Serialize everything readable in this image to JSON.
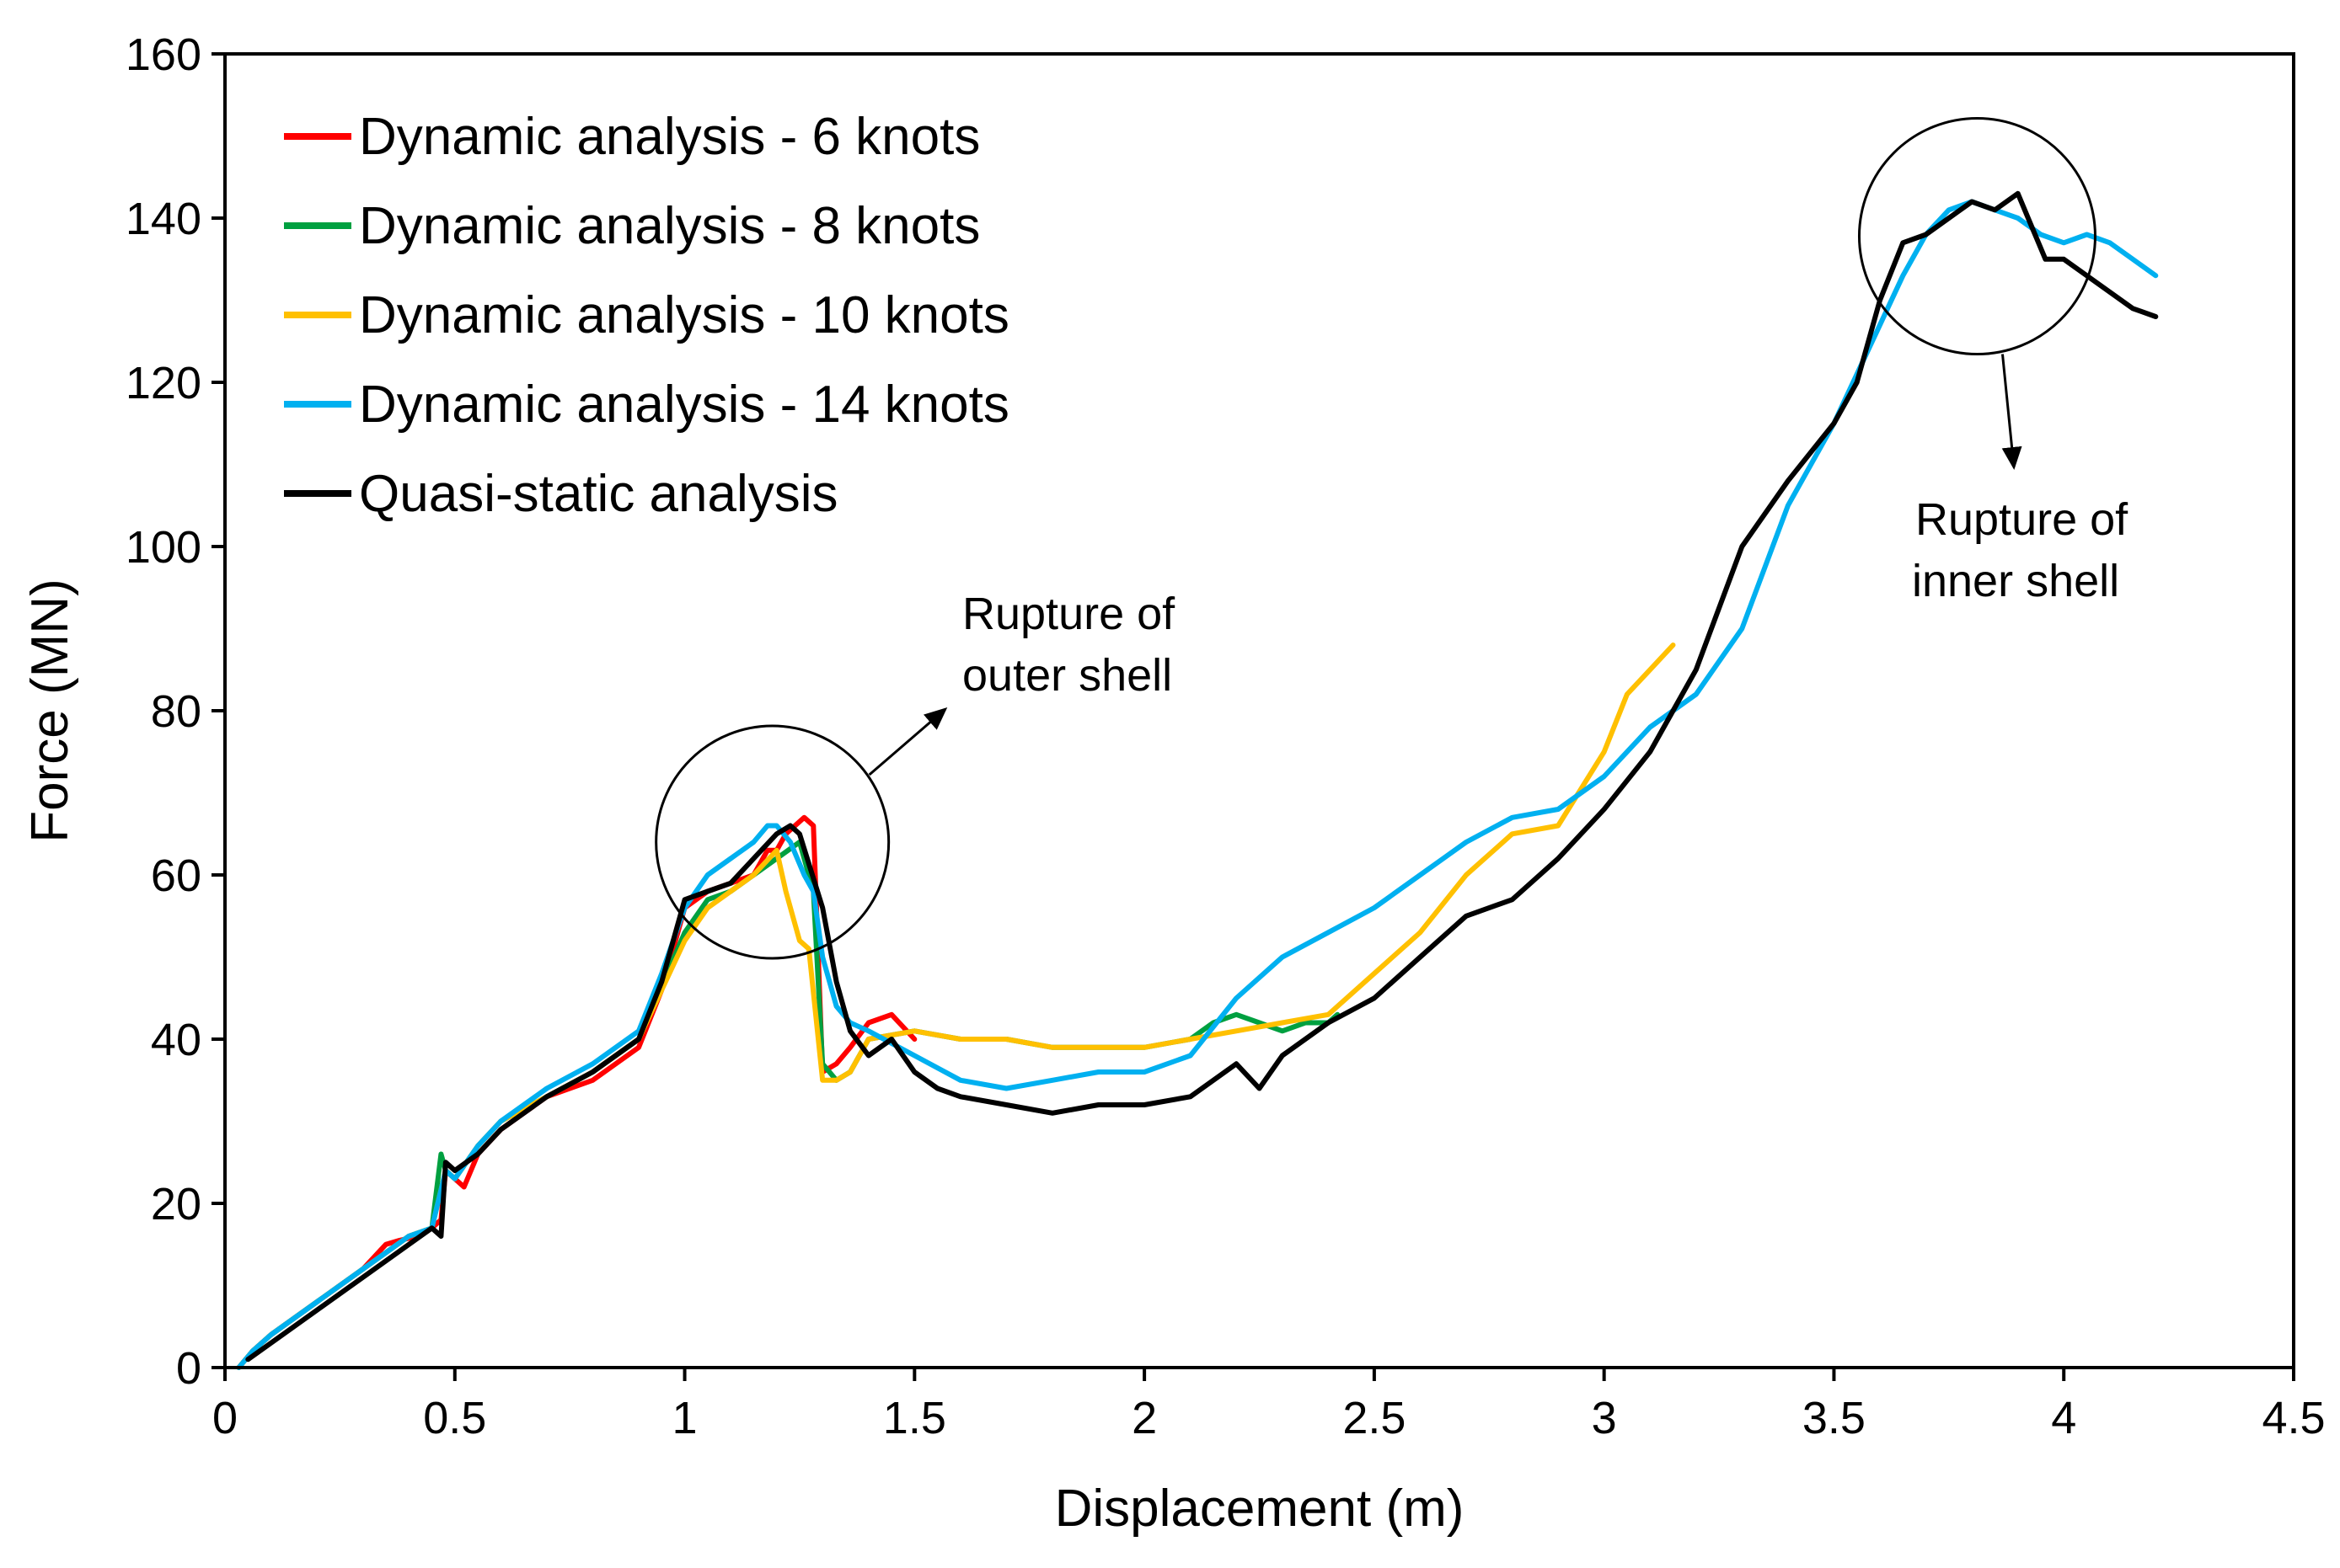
{
  "chart_data": {
    "type": "line",
    "title": "",
    "xlabel": "Displacement (m)",
    "ylabel": "Force (MN)",
    "xlim": [
      0,
      4.5
    ],
    "ylim": [
      0,
      160
    ],
    "xticks": [
      "0",
      "0.5",
      "1",
      "1.5",
      "2",
      "2.5",
      "3",
      "3.5",
      "4",
      "4.5"
    ],
    "yticks": [
      "0",
      "20",
      "40",
      "60",
      "80",
      "100",
      "120",
      "140",
      "160"
    ],
    "grid": false,
    "legend_position": "top-left",
    "series": [
      {
        "name": "Dynamic analysis - 6 knots",
        "color": "#ff0000",
        "x": [
          0.03,
          0.06,
          0.1,
          0.15,
          0.2,
          0.25,
          0.3,
          0.35,
          0.38,
          0.42,
          0.45,
          0.47,
          0.48,
          0.5,
          0.52,
          0.55,
          0.6,
          0.65,
          0.7,
          0.8,
          0.9,
          0.95,
          1.0,
          1.05,
          1.1,
          1.15,
          1.18,
          1.2,
          1.22,
          1.24,
          1.26,
          1.28,
          1.3,
          1.33,
          1.36,
          1.4,
          1.45,
          1.5
        ],
        "y": [
          0,
          2,
          4,
          6,
          8,
          10,
          12,
          15,
          15.5,
          16,
          17,
          18,
          24,
          23,
          22,
          26,
          29,
          31,
          33,
          35,
          39,
          46,
          56,
          58,
          59,
          60,
          63,
          63,
          65,
          66,
          67,
          66,
          36,
          37,
          39,
          42,
          43,
          40
        ]
      },
      {
        "name": "Dynamic analysis - 8 knots",
        "color": "#00a040",
        "x": [
          0.03,
          0.06,
          0.1,
          0.2,
          0.3,
          0.4,
          0.45,
          0.47,
          0.48,
          0.5,
          0.55,
          0.6,
          0.7,
          0.8,
          0.9,
          1.0,
          1.05,
          1.1,
          1.15,
          1.2,
          1.25,
          1.28,
          1.3,
          1.33,
          1.36,
          1.4,
          1.5,
          1.6,
          1.7,
          1.8,
          1.9,
          2.0,
          2.1,
          2.15,
          2.2,
          2.25,
          2.3,
          2.35,
          2.4,
          2.42
        ],
        "y": [
          0,
          2,
          4,
          8,
          12,
          16,
          17,
          26,
          24,
          23,
          27,
          30,
          33,
          36,
          40,
          53,
          57,
          58,
          60,
          62,
          64,
          58,
          37,
          35,
          36,
          40,
          41,
          40,
          40,
          39,
          39,
          39,
          40,
          42,
          43,
          42,
          41,
          42,
          42,
          43
        ]
      },
      {
        "name": "Dynamic analysis - 10 knots",
        "color": "#ffc000",
        "x": [
          0.03,
          0.06,
          0.1,
          0.2,
          0.3,
          0.4,
          0.45,
          0.48,
          0.5,
          0.55,
          0.6,
          0.7,
          0.8,
          0.9,
          1.0,
          1.05,
          1.1,
          1.15,
          1.2,
          1.22,
          1.25,
          1.27,
          1.3,
          1.33,
          1.36,
          1.4,
          1.5,
          1.6,
          1.7,
          1.8,
          1.9,
          2.0,
          2.1,
          2.2,
          2.3,
          2.4,
          2.5,
          2.6,
          2.7,
          2.8,
          2.9,
          3.0,
          3.05,
          3.1,
          3.15
        ],
        "y": [
          0,
          2,
          4,
          8,
          12,
          16,
          17,
          24,
          23,
          27,
          30,
          33,
          36,
          40,
          52,
          56,
          58,
          60,
          63,
          58,
          52,
          51,
          35,
          35,
          36,
          40,
          41,
          40,
          40,
          39,
          39,
          39,
          40,
          41,
          42,
          43,
          48,
          53,
          60,
          65,
          66,
          75,
          82,
          85,
          88
        ]
      },
      {
        "name": "Dynamic analysis - 14 knots",
        "color": "#00b0f0",
        "x": [
          0.03,
          0.06,
          0.1,
          0.2,
          0.3,
          0.4,
          0.45,
          0.48,
          0.5,
          0.55,
          0.6,
          0.7,
          0.8,
          0.9,
          0.95,
          1.0,
          1.05,
          1.1,
          1.15,
          1.18,
          1.2,
          1.23,
          1.26,
          1.28,
          1.3,
          1.33,
          1.36,
          1.4,
          1.5,
          1.6,
          1.7,
          1.8,
          1.9,
          2.0,
          2.1,
          2.2,
          2.3,
          2.4,
          2.5,
          2.6,
          2.7,
          2.8,
          2.9,
          3.0,
          3.1,
          3.2,
          3.3,
          3.4,
          3.5,
          3.6,
          3.65,
          3.7,
          3.75,
          3.8,
          3.85,
          3.9,
          3.95,
          4.0,
          4.05,
          4.1,
          4.15,
          4.2
        ],
        "y": [
          0,
          2,
          4,
          8,
          12,
          16,
          17,
          24,
          23,
          27,
          30,
          34,
          37,
          41,
          48,
          56,
          60,
          62,
          64,
          66,
          66,
          64,
          60,
          58,
          50,
          44,
          42,
          41,
          38,
          35,
          34,
          35,
          36,
          36,
          38,
          45,
          50,
          53,
          56,
          60,
          64,
          67,
          68,
          72,
          78,
          82,
          90,
          105,
          115,
          127,
          133,
          138,
          141,
          142,
          141,
          140,
          138,
          137,
          138,
          137,
          135,
          133
        ]
      },
      {
        "name": "Quasi-static analysis",
        "color": "#000000",
        "x": [
          0.05,
          0.1,
          0.2,
          0.3,
          0.4,
          0.45,
          0.47,
          0.48,
          0.5,
          0.55,
          0.6,
          0.7,
          0.8,
          0.9,
          0.95,
          1.0,
          1.05,
          1.1,
          1.15,
          1.2,
          1.23,
          1.25,
          1.3,
          1.33,
          1.36,
          1.4,
          1.45,
          1.5,
          1.55,
          1.6,
          1.7,
          1.8,
          1.9,
          2.0,
          2.1,
          2.2,
          2.25,
          2.3,
          2.4,
          2.5,
          2.6,
          2.7,
          2.8,
          2.9,
          3.0,
          3.1,
          3.15,
          3.2,
          3.3,
          3.4,
          3.5,
          3.55,
          3.6,
          3.65,
          3.7,
          3.75,
          3.8,
          3.85,
          3.9,
          3.93,
          3.96,
          4.0,
          4.05,
          4.1,
          4.15,
          4.2
        ],
        "y": [
          1,
          3,
          7,
          11,
          15,
          17,
          16,
          25,
          24,
          26,
          29,
          33,
          36,
          40,
          47,
          57,
          58,
          59,
          62,
          65,
          66,
          65,
          56,
          47,
          41,
          38,
          40,
          36,
          34,
          33,
          32,
          31,
          32,
          32,
          33,
          37,
          34,
          38,
          42,
          45,
          50,
          55,
          57,
          62,
          68,
          75,
          80,
          85,
          100,
          108,
          115,
          120,
          130,
          137,
          138,
          140,
          142,
          141,
          143,
          139,
          135,
          135,
          133,
          131,
          129,
          128
        ]
      }
    ],
    "annotations": [
      {
        "line1": "Rupture  of",
        "line2": "outer shell",
        "target_x": 1.2,
        "target_y": 64
      },
      {
        "line1": "Rupture  of",
        "line2": "inner shell",
        "target_x": 3.83,
        "target_y": 138
      }
    ]
  }
}
